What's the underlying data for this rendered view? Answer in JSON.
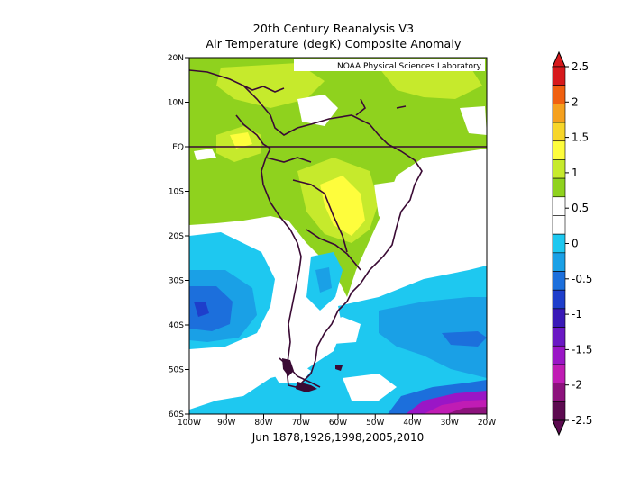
{
  "title": "20th Century Reanalysis V3",
  "subtitle": "Air Temperature (degK) Composite Anomaly",
  "credit": "NOAA Physical Sciences Laboratory",
  "footer": "Jun 1878,1926,1998,2005,2010",
  "map": {
    "lat_labels": [
      "20N",
      "10N",
      "EQ",
      "10S",
      "20S",
      "30S",
      "40S",
      "50S",
      "60S"
    ],
    "lon_labels": [
      "100W",
      "90W",
      "80W",
      "70W",
      "60W",
      "50W",
      "40W",
      "30W",
      "20W"
    ]
  },
  "colorbar": {
    "labels": [
      "2.5",
      "2",
      "1.5",
      "1",
      "0.5",
      "0",
      "-0.5",
      "-1",
      "-1.5",
      "-2",
      "-2.5"
    ],
    "colors": [
      "#d7191c",
      "#f06010",
      "#f5a01e",
      "#f7d62a",
      "#fefd3c",
      "#c6ea2c",
      "#8fd21e",
      "#ffffff",
      "#ffffff",
      "#1ec8f0",
      "#1aa0e6",
      "#1c6fdc",
      "#1e3ecb",
      "#3919b7",
      "#6a18c4",
      "#9a16c6",
      "#c01cb4",
      "#8c127c",
      "#5c0a50"
    ]
  },
  "colors": {
    "frame": "#000000",
    "coast": "#3a0a34",
    "equator": "#3a0a34"
  }
}
